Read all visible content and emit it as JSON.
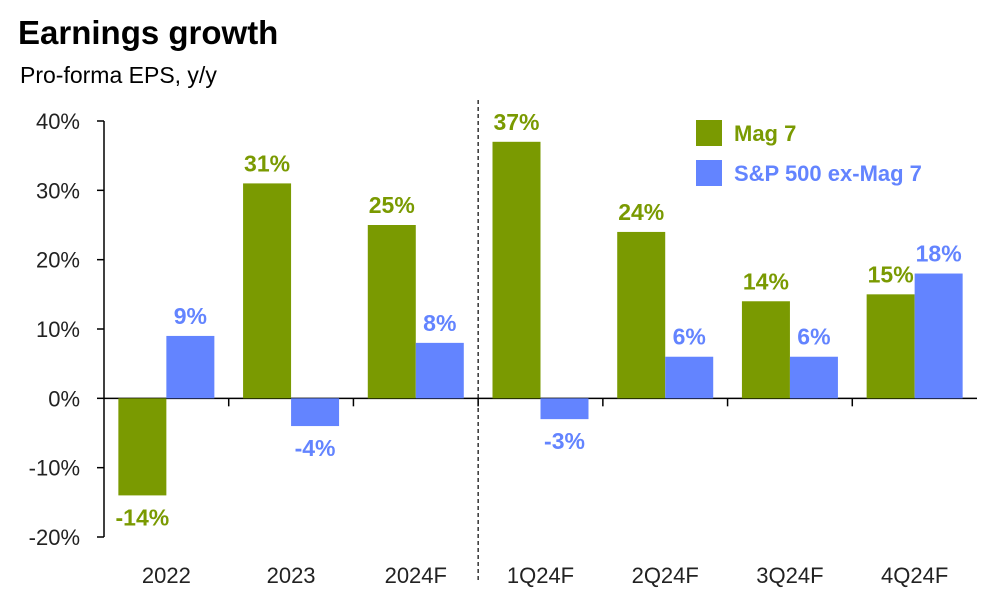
{
  "chart_data": {
    "type": "bar",
    "title": "Earnings growth",
    "subtitle": "Pro-forma EPS, y/y",
    "categories": [
      "2022",
      "2023",
      "2024F",
      "1Q24F",
      "2Q24F",
      "3Q24F",
      "4Q24F"
    ],
    "series": [
      {
        "name": "Mag 7",
        "color": "#7a9a01",
        "values": [
          -14,
          31,
          25,
          37,
          24,
          14,
          15
        ],
        "labels": [
          "-14%",
          "31%",
          "25%",
          "37%",
          "24%",
          "14%",
          "15%"
        ]
      },
      {
        "name": "S&P 500 ex-Mag 7",
        "color": "#6384ff",
        "values": [
          9,
          -4,
          8,
          -3,
          6,
          6,
          18
        ],
        "labels": [
          "9%",
          "-4%",
          "8%",
          "-3%",
          "6%",
          "6%",
          "18%"
        ]
      }
    ],
    "ylim": [
      -20,
      40
    ],
    "yticks": [
      40,
      30,
      20,
      10,
      0,
      -10,
      -20
    ],
    "ytick_labels": [
      "40%",
      "30%",
      "20%",
      "10%",
      "0%",
      "-10%",
      "-20%"
    ],
    "divider_after_category": "2024F",
    "legend_position": "top-right",
    "grid": false
  }
}
